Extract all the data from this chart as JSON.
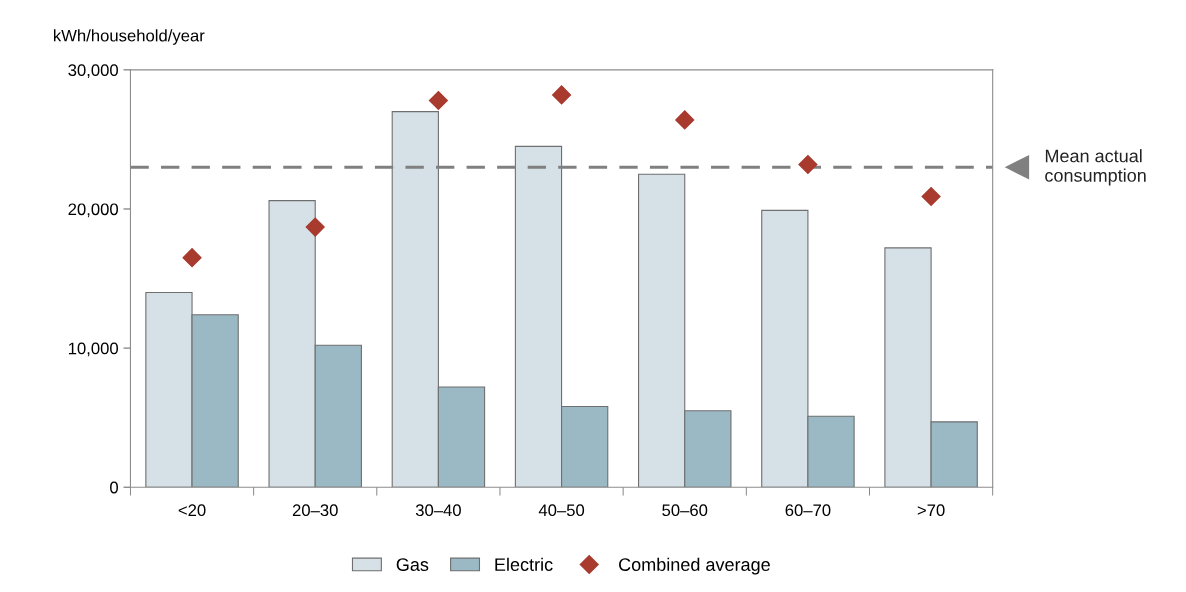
{
  "chart_data": {
    "type": "bar",
    "ylabel": "kWh/household/year",
    "categories": [
      "<20",
      "20–30",
      "30–40",
      "40–50",
      "50–60",
      "60–70",
      ">70"
    ],
    "series": [
      {
        "name": "Gas",
        "color": "#d5e1e6",
        "values": [
          14000,
          20600,
          27000,
          24500,
          22500,
          19900,
          17200
        ]
      },
      {
        "name": "Electric",
        "color": "#9ab9c4",
        "values": [
          12400,
          10200,
          7200,
          5800,
          5500,
          5100,
          4700
        ]
      },
      {
        "name": "Combined average",
        "type": "scatter",
        "marker": "diamond",
        "color": "#a83a2e",
        "values": [
          16500,
          18700,
          27800,
          28200,
          26400,
          23200,
          20900
        ]
      }
    ],
    "ylim": [
      0,
      30000
    ],
    "yticks": [
      {
        "value": 0,
        "label": "0"
      },
      {
        "value": 10000,
        "label": "10,000"
      },
      {
        "value": 20000,
        "label": "20,000"
      },
      {
        "value": 30000,
        "label": "30,000"
      }
    ],
    "ref_lines": [
      {
        "axis": "y",
        "value": 23000,
        "label": "Mean actual consumption",
        "color": "#808080",
        "line_style": "dashed"
      }
    ],
    "grid": false,
    "legend": "bottom"
  }
}
